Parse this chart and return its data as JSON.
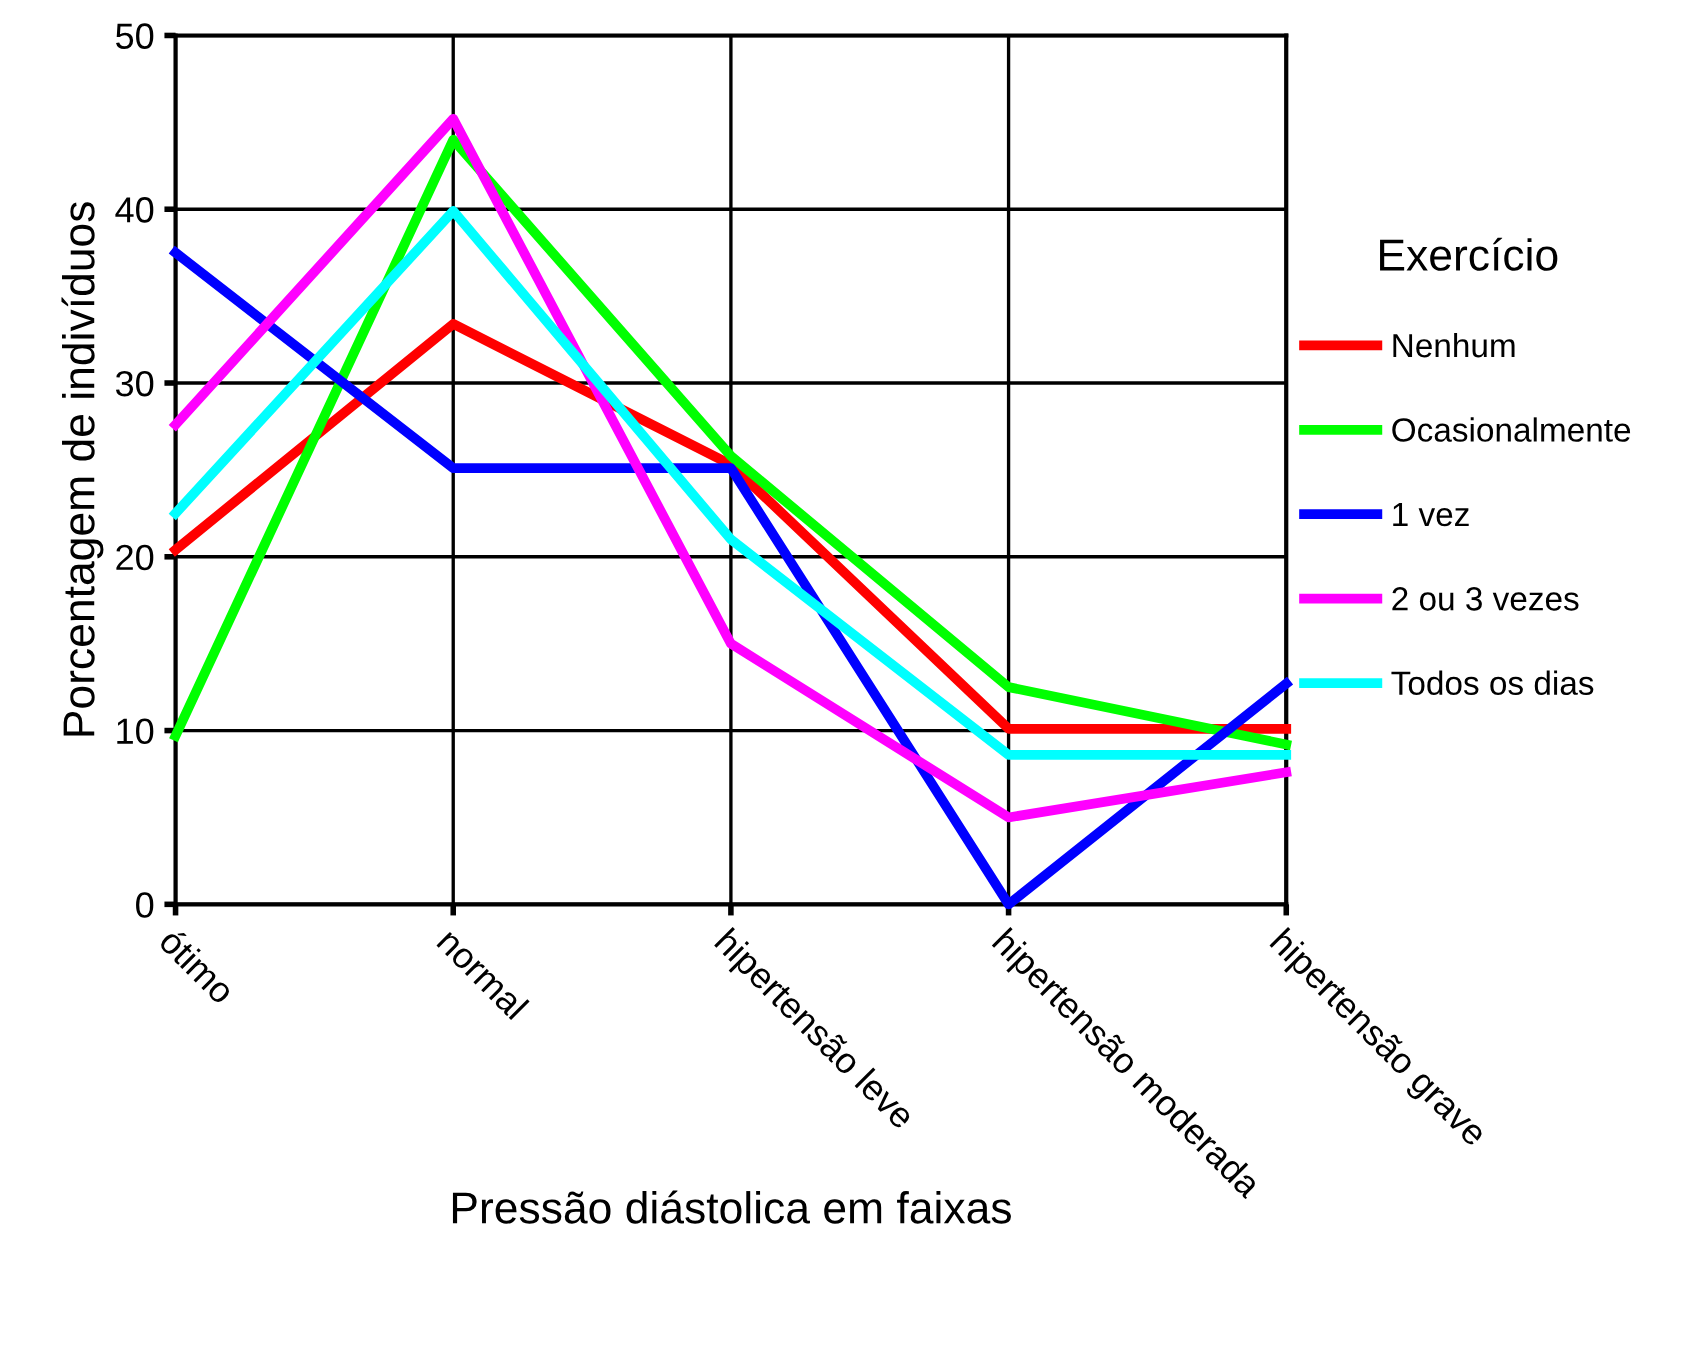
{
  "chart_data": {
    "type": "line",
    "xlabel": "Pressão diástolica em faixas",
    "ylabel": "Porcentagem de indivíduos",
    "legend_title": "Exercício",
    "categories": [
      "ótimo",
      "normal",
      "hipertensão leve",
      "hipertensão moderada",
      "hipertensão grave"
    ],
    "series": [
      {
        "name": "Nenhum",
        "color": "#ff0000",
        "values": [
          20.4,
          33.4,
          25.3,
          10.1,
          10.1
        ]
      },
      {
        "name": "Ocasionalmente",
        "color": "#00ff00",
        "values": [
          9.7,
          44,
          25.8,
          12.5,
          9.2
        ]
      },
      {
        "name": "1 vez",
        "color": "#0000ff",
        "values": [
          37.5,
          25.1,
          25.1,
          0,
          12.7
        ]
      },
      {
        "name": "2 ou 3 vezes",
        "color": "#ff00ff",
        "values": [
          27.6,
          45.2,
          15,
          5,
          7.6
        ]
      },
      {
        "name": "Todos os dias",
        "color": "#00ffff",
        "values": [
          22.5,
          39.9,
          21,
          8.6,
          8.6
        ]
      }
    ],
    "ylim": [
      0,
      50
    ],
    "yticks": [
      0,
      10,
      20,
      30,
      40,
      50
    ],
    "grid": true,
    "legend": "right",
    "marker": "none",
    "line_style": "solid"
  }
}
